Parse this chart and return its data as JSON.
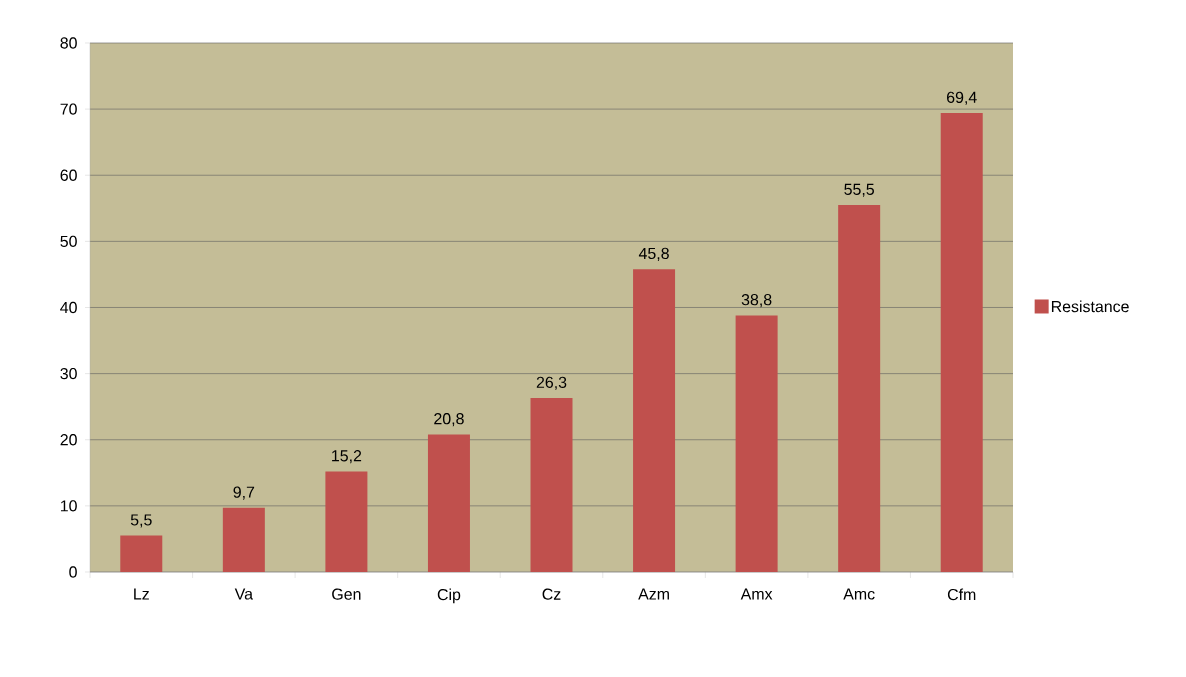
{
  "chart_data": {
    "type": "bar",
    "categories": [
      "Lz",
      "Va",
      "Gen",
      "Cip",
      "Cz",
      "Azm",
      "Amx",
      "Amc",
      "Cfm"
    ],
    "series": [
      {
        "name": "Resistance",
        "color": "#c0504d",
        "values": [
          5.5,
          9.7,
          15.2,
          20.8,
          26.3,
          45.8,
          38.8,
          55.5,
          69.4
        ],
        "value_labels": [
          "5,5",
          "9,7",
          "15,2",
          "20,8",
          "26,3",
          "45,8",
          "38,8",
          "55,5",
          "69,4"
        ]
      }
    ],
    "ylim": [
      0,
      80
    ],
    "yticks": [
      0,
      10,
      20,
      30,
      40,
      50,
      60,
      70,
      80
    ],
    "grid": "y",
    "legend": "right"
  }
}
